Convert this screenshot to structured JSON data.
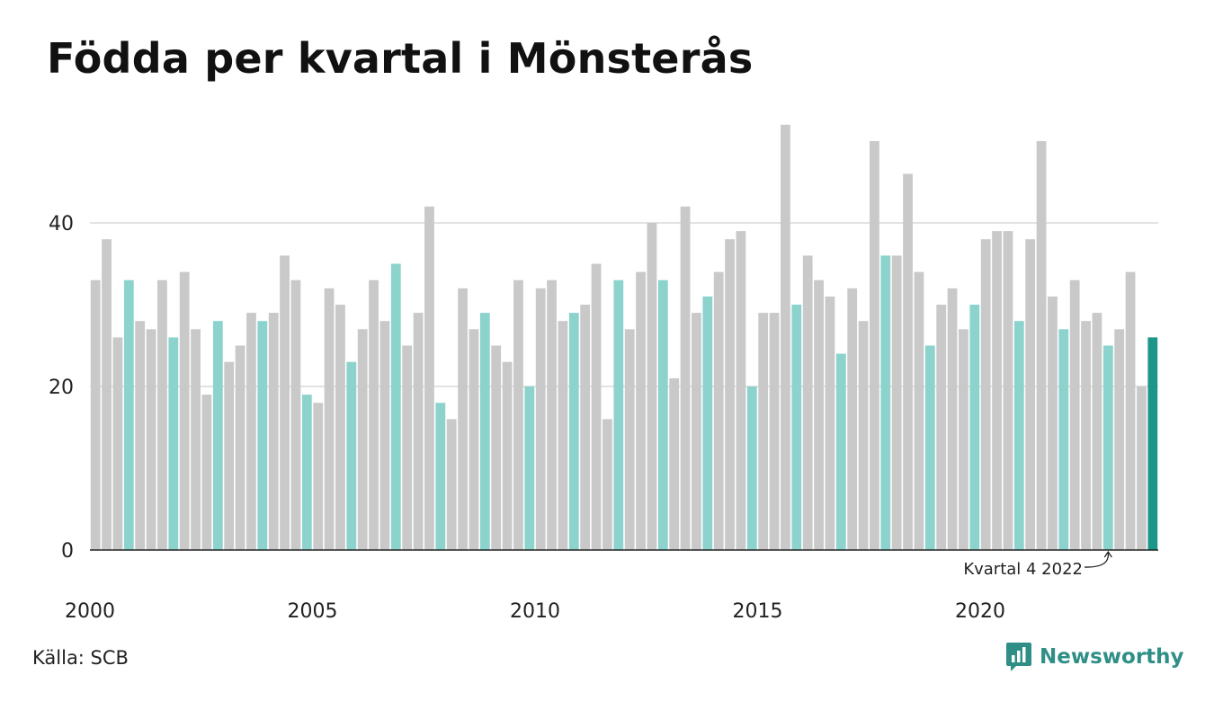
{
  "title": "Födda per kvartal i Mönsterås",
  "source": "Källa: SCB",
  "brand": {
    "name": "Newsworthy",
    "icon": "bar-chart-logo-icon"
  },
  "colors": {
    "default_bar": "#c9c9c9",
    "q4_bar": "#8bd3cc",
    "latest_bar": "#1b9688",
    "grid": "#e2e2e2",
    "axis": "#222222"
  },
  "chart_data": {
    "type": "bar",
    "title": "Födda per kvartal i Mönsterås",
    "xlabel": "",
    "ylabel": "",
    "ylim": [
      0,
      52
    ],
    "y_ticks": [
      0,
      20,
      40
    ],
    "x_tick_labels": [
      "2000",
      "2005",
      "2010",
      "2015",
      "2020"
    ],
    "grid": true,
    "highlight": "quarter 4 bars in teal, latest bar in dark teal",
    "values": [
      33,
      38,
      26,
      33,
      28,
      27,
      33,
      26,
      34,
      27,
      19,
      28,
      23,
      25,
      29,
      28,
      29,
      36,
      33,
      19,
      18,
      32,
      30,
      23,
      27,
      33,
      28,
      35,
      25,
      29,
      42,
      18,
      16,
      32,
      27,
      29,
      25,
      23,
      33,
      20,
      32,
      33,
      28,
      29,
      30,
      35,
      16,
      33,
      27,
      34,
      40,
      33,
      21,
      42,
      29,
      31,
      34,
      38,
      39,
      20,
      29,
      29,
      52,
      30,
      36,
      33,
      31,
      24,
      32,
      28,
      50,
      36,
      36,
      46,
      34,
      25,
      30,
      32,
      27,
      30,
      38,
      39,
      39,
      28,
      38,
      50,
      31,
      27,
      33,
      28,
      29,
      25,
      27,
      34,
      20,
      26
    ],
    "annotation": {
      "text": "Kvartal 4 2022"
    }
  }
}
